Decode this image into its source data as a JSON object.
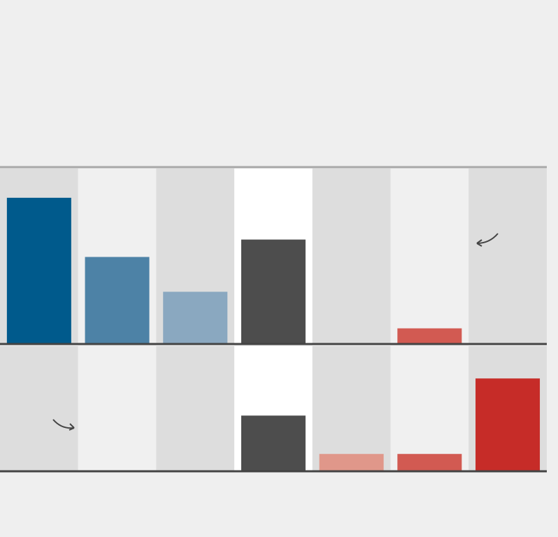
{
  "chart_data": {
    "type": "bar",
    "title": "",
    "subtitle": "",
    "notes": [],
    "source": "",
    "ylim": [
      0,
      100
    ],
    "grid": false,
    "legend": "none",
    "columns": 7,
    "column_bg": [
      "#dddddd",
      "#f0f0f0",
      "#dddddd",
      "#ffffff",
      "#dddddd",
      "#f0f0f0",
      "#dddddd"
    ],
    "panels": [
      {
        "name": "",
        "values": [
          84,
          50,
          30,
          60,
          null,
          9,
          null
        ],
        "value_labels": [
          "",
          "",
          "",
          "",
          "",
          "",
          ""
        ],
        "colors": [
          "#005a8c",
          "#4d82a6",
          "#8aa8c0",
          "#4d4d4d",
          null,
          "#d25a52",
          null
        ],
        "annotation": {
          "text": "",
          "column": 5
        }
      },
      {
        "name": "",
        "values": [
          null,
          null,
          null,
          45,
          14,
          14,
          75
        ],
        "value_labels": [
          "",
          "",
          "",
          "",
          "",
          "",
          ""
        ],
        "colors": [
          null,
          null,
          null,
          "#4d4d4d",
          "#e0978a",
          "#d25a52",
          "#c62c28"
        ],
        "annotation": {
          "text": "",
          "column": 0
        }
      }
    ]
  }
}
